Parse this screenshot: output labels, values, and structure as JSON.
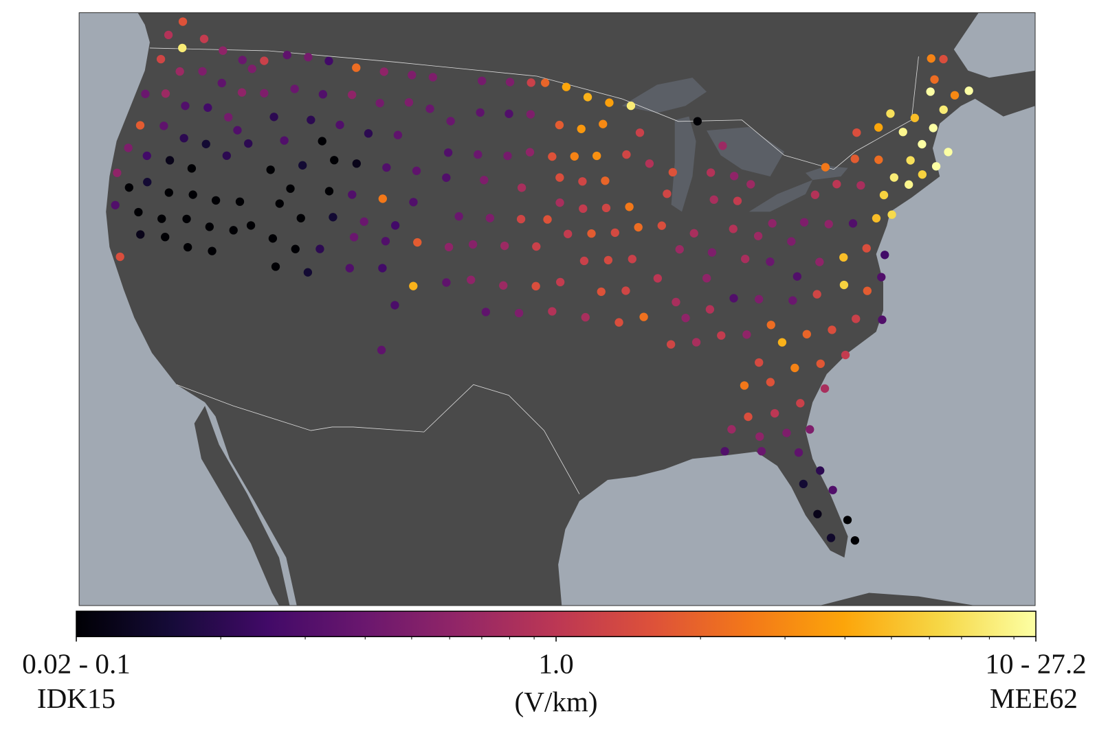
{
  "chart_data": {
    "type": "map",
    "lon": [
      -123.5,
      -122.3,
      -121,
      -119.5,
      -118,
      -117.2,
      -123.5,
      -122,
      -120.5,
      -119,
      -117.5,
      -122.8,
      -123.8,
      -122.5,
      -121,
      -119.5,
      -118,
      -117.2,
      -123.5,
      -122,
      -120.5,
      -119,
      -117.5,
      -123.8,
      -122.5,
      -121,
      -119.5,
      -124,
      -123,
      -122,
      -120.5,
      -119,
      -117.5,
      -116,
      -123.5,
      -122,
      -120.5,
      -119,
      -117.5,
      -116,
      -115,
      -121.5,
      -120,
      -118.5,
      -117,
      -122.3,
      -116.5,
      -116,
      -115,
      -114,
      -116.3,
      -114.5,
      -112.5,
      -113,
      -111.5,
      -115,
      -113.5,
      -112,
      -110,
      -108,
      -106,
      -104.5,
      -114,
      -112,
      -110,
      -108,
      -106,
      -104.5,
      -112.5,
      -110.5,
      -108.5,
      -106.5,
      -110.5,
      -109,
      -107,
      -105,
      -110.5,
      -109,
      -107,
      -105,
      -110,
      -108,
      -106,
      -113.5,
      -112,
      -113.5,
      -112,
      -110.5,
      -113,
      -111,
      -108.5,
      -106.5,
      -104.5,
      -102.5,
      -108.5,
      -106.5,
      -104.5,
      -102.5,
      -105.5,
      -106,
      -103,
      -101,
      -99,
      -97.5,
      -103,
      -101,
      -99,
      -97.5,
      -101,
      -99,
      -97.5,
      -103,
      -100.5,
      -98,
      -102,
      -100,
      -98,
      -96.3,
      -101,
      -99,
      -97,
      -101,
      -99,
      -97,
      -95.5,
      -100,
      -98,
      -96,
      -96.5,
      -95,
      -93.5,
      -92,
      -90.5,
      -95.5,
      -94,
      -92.5,
      -96,
      -94.5,
      -93,
      -95.5,
      -94,
      -92.5,
      -95.5,
      -94,
      -92.5,
      -91,
      -95,
      -93.5,
      -92,
      -90.5,
      -94,
      -92.5,
      -91,
      -93,
      -91.5,
      -94,
      -92,
      -90.5,
      -89,
      -88,
      -89.5,
      -88.5,
      -91,
      -89.5,
      -88,
      -90,
      -88.5,
      -86,
      -84.5,
      -85.5,
      -84,
      -85.5,
      -84,
      -83,
      -87,
      -86,
      -86.5,
      -84.5,
      -83,
      -82,
      -84,
      -82.5,
      -81,
      -88,
      -86.5,
      -85,
      -83.5,
      -89,
      -87.5,
      -86,
      -84.5,
      -83,
      -84,
      -82.5,
      -81,
      -79.5,
      -78,
      -76.5,
      -85,
      -83.5,
      -82,
      -80.5,
      -79,
      -85,
      -83.5,
      -82,
      -80.5,
      -86,
      -84.5,
      -83,
      -81.7,
      -86.5,
      -84.5,
      -82.5,
      -81.5,
      -82.5,
      -81,
      -82,
      -80.5,
      -81.5,
      -80.3,
      -81,
      -79.5,
      -81.5,
      -80,
      -78.3,
      -77,
      -76,
      -78,
      -76.5,
      -75.5,
      -80,
      -78.5,
      -77,
      -75.5,
      -74.5,
      -79,
      -77.5,
      -76,
      -74.7,
      -78,
      -76,
      -74.5,
      -75.5,
      -74,
      -73.8,
      -73,
      -72,
      -71,
      -70,
      -72.5,
      -71.5,
      -70.5,
      -72.5,
      -71.5,
      -73,
      -69.5,
      -68.5,
      -69.5,
      -68.5,
      -67.5,
      -70,
      -69.3
    ],
    "lat": [
      48,
      47.6,
      48.3,
      48,
      47.8,
      47.5,
      46.8,
      46.5,
      46.8,
      46.5,
      46.3,
      48.8,
      45,
      45.3,
      45,
      45.2,
      45,
      44.5,
      43.5,
      43.8,
      43.5,
      43.5,
      43.2,
      42.3,
      42.2,
      42.3,
      42.2,
      41,
      40.5,
      41,
      40.8,
      41,
      41,
      41.2,
      39.5,
      39.5,
      39.5,
      39.8,
      39.7,
      39.8,
      40.2,
      38.5,
      38.7,
      38.5,
      38.6,
      37.2,
      48,
      46.5,
      45.5,
      44.5,
      44,
      43,
      43.5,
      42.3,
      44.8,
      48.5,
      48.6,
      48.6,
      48.5,
      48.5,
      48.5,
      48.5,
      47,
      47,
      47.2,
      47,
      47.2,
      47,
      45.7,
      45.7,
      45.5,
      45.6,
      44,
      44,
      44,
      44,
      42.5,
      42.5,
      42.5,
      42.5,
      41.3,
      41.3,
      41.3,
      41.5,
      41,
      39.8,
      39.5,
      39.7,
      38.5,
      38.5,
      40.5,
      40.5,
      40.6,
      40.5,
      39,
      39.2,
      38.5,
      38.8,
      37.5,
      35.3,
      46.5,
      47,
      47,
      47,
      45,
      45,
      45,
      45.2,
      48.5,
      48.5,
      48.5,
      43.8,
      43.8,
      43.5,
      42,
      42,
      42,
      42,
      40.7,
      40.7,
      40.7,
      39,
      38.8,
      38.8,
      39,
      37.5,
      37.5,
      37.6,
      48.5,
      48.3,
      47.8,
      47.5,
      47.3,
      46.5,
      46.3,
      46.5,
      45,
      45,
      45,
      44,
      43.8,
      43.8,
      42.8,
      42.5,
      42.5,
      42.5,
      41.3,
      41.3,
      41.3,
      41.5,
      40,
      40,
      40,
      38.5,
      38.5,
      37.3,
      37,
      37.2,
      41.5,
      40.3,
      39,
      37.8,
      45,
      44.5,
      44,
      46,
      43,
      46.3,
      45,
      43.8,
      43.5,
      42.5,
      42.3,
      43,
      41,
      40,
      38.8,
      41,
      40.5,
      41,
      39.5,
      39.2,
      40,
      37,
      37.3,
      37.7,
      37.5,
      35.8,
      35.8,
      36,
      35.9,
      36.2,
      34.5,
      35.3,
      35.5,
      35.5,
      35.8,
      35.5,
      33.5,
      33.5,
      34,
      34,
      34.2,
      32,
      32,
      32.3,
      32.8,
      31.5,
      31,
      31,
      31,
      30.5,
      30.3,
      30,
      29,
      28.5,
      28,
      27,
      26.5,
      25.8,
      25.5,
      38.3,
      38.8,
      37.2,
      37.3,
      37.5,
      37,
      37.5,
      38.8,
      39,
      38.5,
      40.8,
      40.5,
      40.3,
      40.3,
      40.3,
      42,
      42.3,
      42,
      41.3,
      43.2,
      43.3,
      43,
      44.5,
      44.5,
      42,
      41.5,
      41.8,
      42,
      42.5,
      42.6,
      43.2,
      43.8,
      44,
      44.5,
      45,
      44.5,
      45,
      46,
      46.8,
      45,
      45.5,
      47
    ],
    "values": [
      0.9,
      8,
      1.1,
      0.6,
      0.4,
      0.5,
      1.3,
      0.7,
      0.5,
      0.35,
      0.6,
      1.6,
      0.4,
      0.7,
      0.3,
      0.25,
      0.45,
      0.3,
      1.8,
      0.35,
      0.2,
      0.15,
      0.2,
      0.5,
      0.25,
      0.12,
      0.09,
      0.6,
      0.08,
      0.15,
      0.06,
      0.07,
      0.05,
      0.09,
      0.3,
      0.05,
      0.04,
      0.06,
      0.08,
      0.05,
      0.07,
      0.12,
      0.07,
      0.09,
      0.06,
      1.5,
      1.2,
      0.5,
      0.2,
      0.3,
      0.2,
      0.07,
      0.15,
      0.08,
      0.1,
      0.35,
      0.45,
      0.25,
      2.2,
      0.6,
      0.5,
      0.5,
      0.4,
      0.3,
      0.6,
      0.45,
      0.5,
      0.4,
      0.2,
      0.3,
      0.2,
      0.35,
      0.07,
      0.12,
      0.3,
      0.35,
      0.08,
      0.3,
      2.5,
      0.3,
      0.15,
      0.4,
      0.25,
      0.1,
      0.07,
      0.06,
      0.05,
      0.2,
      0.08,
      0.15,
      0.4,
      0.3,
      1.8,
      0.6,
      0.3,
      0.25,
      4.5,
      0.35,
      0.28,
      0.35,
      0.4,
      0.35,
      0.3,
      0.5,
      0.3,
      0.4,
      0.45,
      0.6,
      0.45,
      0.5,
      1.2,
      0.3,
      0.5,
      0.8,
      0.4,
      0.5,
      1.3,
      1.6,
      0.55,
      0.7,
      1.2,
      0.6,
      0.7,
      1.5,
      1.1,
      0.35,
      0.5,
      0.9,
      2,
      4,
      4.5,
      3.8,
      8,
      1.8,
      3.5,
      3,
      1.6,
      2.8,
      3.2,
      1.5,
      1.3,
      2,
      0.8,
      1.1,
      1.3,
      2.5,
      1.1,
      1.8,
      1.4,
      2.2,
      1.2,
      1.4,
      1.2,
      1.6,
      1.3,
      0.8,
      1.5,
      2.3,
      1.5,
      0.7,
      1,
      0.8,
      1.3,
      0.9,
      1.6,
      1.2,
      1.3,
      0.1,
      0.7,
      0.9,
      0.6,
      0.8,
      1.1,
      0.7,
      0.8,
      0.5,
      0.6,
      0.9,
      0.7,
      0.6,
      0.8,
      0.4,
      0.5,
      0.6,
      0.9,
      0.3,
      0.5,
      1.3,
      0.8,
      1.1,
      0.6,
      2.2,
      1.4,
      4.5,
      2,
      1.5,
      1.2,
      0.3,
      2.5,
      1.6,
      2.8,
      1.7,
      1.1,
      1.5,
      1,
      1.2,
      0.8,
      0.7,
      0.6,
      0.5,
      0.5,
      0.3,
      0.4,
      0.35,
      0.2,
      0.15,
      0.3,
      0.12,
      0.1,
      0.14,
      0.09,
      0.3,
      0.6,
      0.4,
      1.3,
      6,
      1.8,
      0.3,
      5,
      1.5,
      0.25,
      0.5,
      0.6,
      0.3,
      5,
      6.5,
      0.9,
      1,
      0.8,
      6,
      2.5,
      1.8,
      2.2,
      1.5,
      4,
      8,
      9,
      6,
      12,
      14,
      7,
      15,
      18,
      9,
      5,
      7,
      8,
      3,
      2.2,
      1.5,
      14,
      11,
      2.8
    ],
    "colormap": [
      "#000004",
      "#160b39",
      "#420a68",
      "#6a176e",
      "#932667",
      "#bc3754",
      "#dd513a",
      "#f37819",
      "#fca50a",
      "#f6d746",
      "#fcffa4"
    ],
    "colorbar": {
      "scale": "log",
      "lim": [
        0.1,
        10
      ],
      "ticks": [
        {
          "value": 0.1,
          "label": "0.02 - 0.1"
        },
        {
          "value": 1,
          "label": "1.0"
        },
        {
          "value": 10,
          "label": "10 - 27.2"
        }
      ],
      "minor_ticks": [
        0.2,
        0.3,
        0.4,
        0.5,
        0.6,
        0.7,
        0.8,
        0.9,
        2,
        3,
        4,
        5,
        6,
        7,
        8,
        9
      ],
      "left_label": "IDK15",
      "unit": "(V/km)",
      "right_label": "MEE62"
    }
  }
}
